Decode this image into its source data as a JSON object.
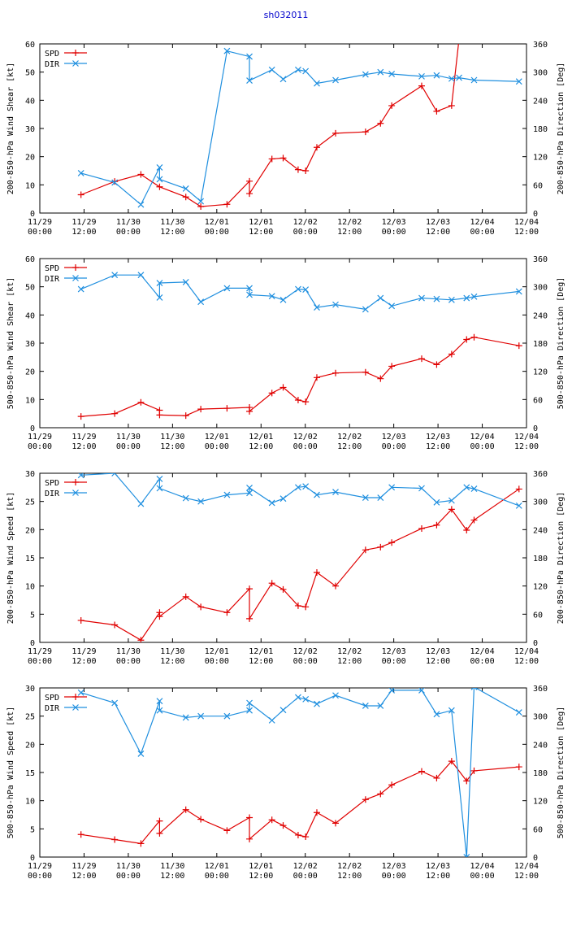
{
  "title": "sh032011",
  "chart_data": [
    {
      "type": "line",
      "ylabel_left": "200-850-hPa Wind Shear [kt]",
      "ylabel_right": "200-850-hPa Direction [Deg]",
      "ylim_left": [
        0,
        60
      ],
      "ylim_right": [
        0,
        360
      ],
      "yticks_left": [
        "0",
        "10",
        "20",
        "30",
        "40",
        "50",
        "60"
      ],
      "yticks_right": [
        "0",
        "60",
        "120",
        "180",
        "240",
        "300",
        "360"
      ],
      "x_hours": [
        0,
        114
      ],
      "xticks": [
        [
          "11/29",
          "00:00"
        ],
        [
          "11/29",
          "12:00"
        ],
        [
          "11/30",
          "00:00"
        ],
        [
          "11/30",
          "12:00"
        ],
        [
          "12/01",
          "00:00"
        ],
        [
          "12/01",
          "12:00"
        ],
        [
          "12/02",
          "00:00"
        ],
        [
          "12/02",
          "12:00"
        ],
        [
          "12/03",
          "00:00"
        ],
        [
          "12/03",
          "12:00"
        ],
        [
          "12/04",
          "00:00"
        ],
        [
          "12/04",
          "12:00"
        ]
      ],
      "series": [
        {
          "name": "SPD",
          "axis": "left",
          "color": "#e00000",
          "x": [
            11,
            20,
            27,
            32,
            39,
            43,
            50,
            56,
            56,
            62,
            65,
            69,
            71,
            74,
            79,
            87,
            91,
            94,
            102,
            106,
            110,
            112
          ],
          "y": [
            6.5,
            11.2,
            13.7,
            9.3,
            5.7,
            2.3,
            3.1,
            11.3,
            6.9,
            19.2,
            19.5,
            15.4,
            15,
            23.3,
            28.3,
            28.8,
            31.8,
            38.1,
            45.1,
            36.1,
            38.1,
            62
          ]
        },
        {
          "name": "DIR",
          "axis": "right",
          "color": "#1f8fdf",
          "x": [
            11,
            20,
            27,
            32,
            32,
            39,
            43,
            50,
            56,
            56,
            62,
            65,
            69,
            71,
            74,
            79,
            87,
            91,
            94,
            102,
            106,
            110,
            112,
            116,
            128
          ],
          "y": [
            85,
            65,
            18,
            97,
            72,
            52,
            25,
            345,
            333,
            282,
            305,
            285,
            305,
            302,
            276,
            283,
            295,
            300,
            296,
            291,
            293,
            286,
            288,
            283,
            280
          ]
        }
      ]
    },
    {
      "type": "line",
      "ylabel_left": "500-850-hPa Wind Shear [kt]",
      "ylabel_right": "500-850-hPa Direction [Deg]",
      "ylim_left": [
        0,
        60
      ],
      "ylim_right": [
        0,
        360
      ],
      "yticks_left": [
        "0",
        "10",
        "20",
        "30",
        "40",
        "50",
        "60"
      ],
      "yticks_right": [
        "0",
        "60",
        "120",
        "180",
        "240",
        "300",
        "360"
      ],
      "xticks": [
        [
          "11/29",
          "00:00"
        ],
        [
          "11/29",
          "12:00"
        ],
        [
          "11/30",
          "00:00"
        ],
        [
          "11/30",
          "12:00"
        ],
        [
          "12/01",
          "00:00"
        ],
        [
          "12/01",
          "12:00"
        ],
        [
          "12/02",
          "00:00"
        ],
        [
          "12/02",
          "12:00"
        ],
        [
          "12/03",
          "00:00"
        ],
        [
          "12/03",
          "12:00"
        ],
        [
          "12/04",
          "00:00"
        ],
        [
          "12/04",
          "12:00"
        ]
      ],
      "series": [
        {
          "name": "SPD",
          "axis": "left",
          "color": "#e00000",
          "x": [
            11,
            20,
            27,
            32,
            32,
            39,
            43,
            50,
            56,
            56,
            62,
            65,
            69,
            71,
            74,
            79,
            87,
            91,
            94,
            102,
            106,
            110,
            114,
            116,
            128
          ],
          "y": [
            4,
            5,
            9,
            6.2,
            4.5,
            4.3,
            6.6,
            6.9,
            7.2,
            5.8,
            12.3,
            14.3,
            9.8,
            9.2,
            17.8,
            19.4,
            19.7,
            17.4,
            21.8,
            24.5,
            22.4,
            26.1,
            31.3,
            32.1,
            29.1
          ]
        },
        {
          "name": "DIR",
          "axis": "right",
          "color": "#1f8fdf",
          "x": [
            11,
            20,
            27,
            32,
            32,
            39,
            43,
            50,
            56,
            56,
            62,
            65,
            69,
            71,
            74,
            79,
            87,
            91,
            94,
            102,
            106,
            110,
            114,
            116,
            128
          ],
          "y": [
            295,
            325,
            325,
            277,
            308,
            310,
            268,
            297,
            297,
            283,
            280,
            272,
            295,
            294,
            256,
            262,
            252,
            276,
            259,
            276,
            274,
            272,
            276,
            279,
            290
          ]
        }
      ]
    },
    {
      "type": "line",
      "ylabel_left": "200-850-hPa Wind Speed [kt]",
      "ylabel_right": "200-850-hPa Direction [Deg]",
      "ylim_left": [
        0,
        30
      ],
      "ylim_right": [
        0,
        360
      ],
      "yticks_left": [
        "0",
        "5",
        "10",
        "15",
        "20",
        "25",
        "30"
      ],
      "yticks_right": [
        "0",
        "60",
        "120",
        "180",
        "240",
        "300",
        "360"
      ],
      "xticks": [
        [
          "11/29",
          "00:00"
        ],
        [
          "11/29",
          "12:00"
        ],
        [
          "11/30",
          "00:00"
        ],
        [
          "11/30",
          "12:00"
        ],
        [
          "12/01",
          "00:00"
        ],
        [
          "12/01",
          "12:00"
        ],
        [
          "12/02",
          "00:00"
        ],
        [
          "12/02",
          "12:00"
        ],
        [
          "12/03",
          "00:00"
        ],
        [
          "12/03",
          "12:00"
        ],
        [
          "12/04",
          "00:00"
        ],
        [
          "12/04",
          "12:00"
        ]
      ],
      "series": [
        {
          "name": "SPD",
          "axis": "left",
          "color": "#e00000",
          "x": [
            11,
            20,
            27,
            32,
            32,
            39,
            43,
            50,
            56,
            56,
            62,
            65,
            69,
            71,
            74,
            79,
            87,
            91,
            94,
            102,
            106,
            110,
            114,
            116,
            128
          ],
          "y": [
            3.9,
            3.1,
            0.4,
            5.3,
            4.6,
            8.1,
            6.3,
            5.3,
            9.5,
            4.2,
            10.5,
            9.4,
            6.5,
            6.3,
            12.4,
            10,
            16.4,
            16.9,
            17.7,
            20.2,
            20.8,
            23.6,
            19.9,
            21.7,
            27.2
          ]
        },
        {
          "name": "DIR",
          "axis": "right",
          "color": "#1f8fdf",
          "x": [
            11,
            20,
            27,
            32,
            32,
            39,
            43,
            50,
            56,
            56,
            62,
            65,
            69,
            71,
            74,
            79,
            87,
            91,
            94,
            102,
            106,
            110,
            114,
            116,
            128
          ],
          "y": [
            356,
            360,
            295,
            348,
            328,
            307,
            300,
            314,
            318,
            329,
            297,
            306,
            330,
            332,
            314,
            320,
            308,
            308,
            330,
            328,
            298,
            302,
            330,
            327,
            291
          ]
        }
      ]
    },
    {
      "type": "line",
      "ylabel_left": "500-850-hPa Wind Speed [kt]",
      "ylabel_right": "500-850-hPa Direction [Deg]",
      "ylim_left": [
        0,
        30
      ],
      "ylim_right": [
        0,
        360
      ],
      "yticks_left": [
        "0",
        "5",
        "10",
        "15",
        "20",
        "25",
        "30"
      ],
      "yticks_right": [
        "0",
        "60",
        "120",
        "180",
        "240",
        "300",
        "360"
      ],
      "xticks": [
        [
          "11/29",
          "00:00"
        ],
        [
          "11/29",
          "12:00"
        ],
        [
          "11/30",
          "00:00"
        ],
        [
          "11/30",
          "12:00"
        ],
        [
          "12/01",
          "00:00"
        ],
        [
          "12/01",
          "12:00"
        ],
        [
          "12/02",
          "00:00"
        ],
        [
          "12/02",
          "12:00"
        ],
        [
          "12/03",
          "00:00"
        ],
        [
          "12/03",
          "12:00"
        ],
        [
          "12/04",
          "00:00"
        ],
        [
          "12/04",
          "12:00"
        ]
      ],
      "series": [
        {
          "name": "SPD",
          "axis": "left",
          "color": "#e00000",
          "x": [
            11,
            20,
            27,
            32,
            32,
            39,
            43,
            50,
            56,
            56,
            62,
            65,
            69,
            71,
            74,
            79,
            87,
            91,
            94,
            102,
            106,
            110,
            114,
            116,
            128
          ],
          "y": [
            4,
            3.1,
            2.4,
            6.4,
            4.2,
            8.4,
            6.7,
            4.7,
            7,
            3.2,
            6.6,
            5.6,
            3.9,
            3.6,
            7.9,
            6,
            10.2,
            11.2,
            12.8,
            15.2,
            14,
            17,
            13.5,
            15.3,
            16
          ]
        },
        {
          "name": "DIR",
          "axis": "right",
          "color": "#1f8fdf",
          "x": [
            11,
            20,
            27,
            32,
            32,
            39,
            43,
            50,
            56,
            56,
            62,
            65,
            69,
            71,
            74,
            79,
            87,
            91,
            94,
            102,
            106,
            110,
            114,
            116,
            128
          ],
          "y": [
            350,
            328,
            220,
            332,
            312,
            297,
            300,
            300,
            312,
            328,
            291,
            313,
            340,
            336,
            326,
            344,
            322,
            322,
            355,
            355,
            304,
            312,
            0,
            362,
            308
          ]
        }
      ]
    }
  ]
}
